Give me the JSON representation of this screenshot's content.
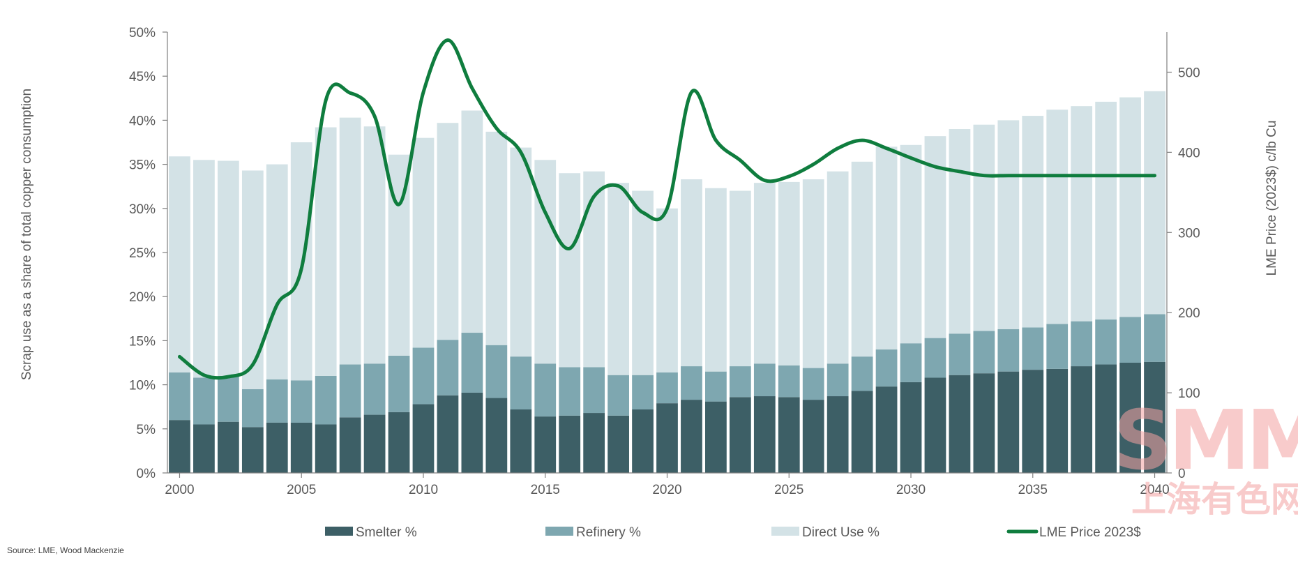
{
  "chart_data": {
    "type": "bar",
    "stacked": true,
    "x": [
      2000,
      2001,
      2002,
      2003,
      2004,
      2005,
      2006,
      2007,
      2008,
      2009,
      2010,
      2011,
      2012,
      2013,
      2014,
      2015,
      2016,
      2017,
      2018,
      2019,
      2020,
      2021,
      2022,
      2023,
      2024,
      2025,
      2026,
      2027,
      2028,
      2029,
      2030,
      2031,
      2032,
      2033,
      2034,
      2035,
      2036,
      2037,
      2038,
      2039,
      2040
    ],
    "x_ticks": [
      "2000",
      "2005",
      "2010",
      "2015",
      "2020",
      "2025",
      "2030",
      "2035",
      "2040"
    ],
    "y_ticks": [
      "0%",
      "5%",
      "10%",
      "15%",
      "20%",
      "25%",
      "30%",
      "35%",
      "40%",
      "45%",
      "50%"
    ],
    "y2_ticks": [
      "0",
      "100",
      "200",
      "300",
      "400",
      "500"
    ],
    "ylim": [
      0,
      50
    ],
    "y2lim": [
      0,
      550
    ],
    "ylabel": "Scrap use as a share of total copper consumption",
    "y2label": "LME Price (2023$) c/lb Cu",
    "legend_position": "bottom",
    "series": [
      {
        "name": "Smelter %",
        "color": "#3d5f66",
        "values": [
          6.0,
          5.5,
          5.8,
          5.2,
          5.7,
          5.7,
          5.5,
          6.3,
          6.6,
          6.9,
          7.8,
          8.8,
          9.1,
          8.5,
          7.2,
          6.4,
          6.5,
          6.8,
          6.5,
          7.2,
          7.9,
          8.3,
          8.1,
          8.6,
          8.7,
          8.6,
          8.3,
          8.7,
          9.3,
          9.8,
          10.3,
          10.8,
          11.1,
          11.3,
          11.5,
          11.7,
          11.8,
          12.1,
          12.3,
          12.5,
          12.6
        ]
      },
      {
        "name": "Refinery %",
        "color": "#7ea7b0",
        "values": [
          5.4,
          5.3,
          5.2,
          4.3,
          4.9,
          4.8,
          5.5,
          6.0,
          5.8,
          6.4,
          6.4,
          6.3,
          6.8,
          6.0,
          6.0,
          6.0,
          5.5,
          5.2,
          4.6,
          3.9,
          3.5,
          3.8,
          3.4,
          3.5,
          3.7,
          3.6,
          3.6,
          3.7,
          3.9,
          4.2,
          4.4,
          4.5,
          4.7,
          4.8,
          4.8,
          4.8,
          5.1,
          5.1,
          5.1,
          5.2,
          5.4
        ]
      },
      {
        "name": "Direct Use %",
        "color": "#d3e2e6",
        "values": [
          24.5,
          24.7,
          24.4,
          24.8,
          24.4,
          27.0,
          28.2,
          28.0,
          26.9,
          22.8,
          23.8,
          24.6,
          25.2,
          24.2,
          23.7,
          23.1,
          22.0,
          22.2,
          21.8,
          20.9,
          18.6,
          21.2,
          20.8,
          19.9,
          20.5,
          20.8,
          21.4,
          21.8,
          22.1,
          23.0,
          22.5,
          22.9,
          23.2,
          23.4,
          23.7,
          24.0,
          24.3,
          24.4,
          24.7,
          24.9,
          25.3
        ]
      },
      {
        "name": "LME Price 2023$",
        "color": "#0f7d3e",
        "type": "line",
        "axis": "right",
        "values": [
          145,
          122,
          120,
          135,
          210,
          255,
          465,
          474,
          445,
          335,
          475,
          540,
          480,
          430,
          400,
          325,
          280,
          345,
          358,
          325,
          330,
          475,
          415,
          390,
          365,
          370,
          385,
          405,
          415,
          405,
          393,
          382,
          376,
          371,
          371,
          371,
          371,
          371,
          371,
          371,
          371
        ]
      }
    ]
  },
  "source": "Source: LME, Wood Mackenzie",
  "watermark": {
    "main": "SMM",
    "sub": "上海有色网"
  }
}
